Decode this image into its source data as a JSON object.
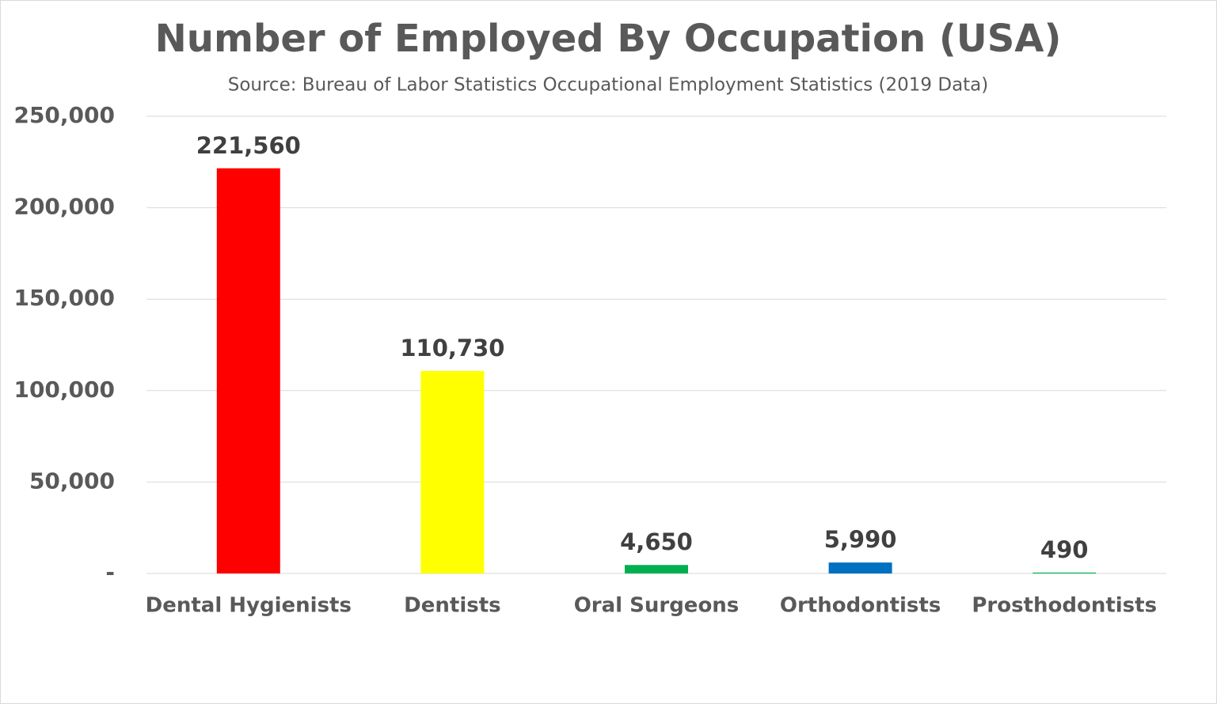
{
  "chart_data": {
    "type": "bar",
    "title": "Number of Employed By Occupation (USA)",
    "subtitle": "Source: Bureau of Labor Statistics Occupational Employment Statistics (2019 Data)",
    "categories": [
      "Dental Hygienists",
      "Dentists",
      "Oral Surgeons",
      "Orthodontists",
      "Prosthodontists"
    ],
    "values": [
      221560,
      110730,
      4650,
      5990,
      490
    ],
    "value_labels": [
      "221,560",
      "110,730",
      "4,650",
      "5,990",
      "490"
    ],
    "colors": [
      "#ff0000",
      "#ffff00",
      "#00b050",
      "#0070c0",
      "#00b050"
    ],
    "ylim": [
      0,
      250000
    ],
    "yticks": [
      {
        "value": 0,
        "label": "-"
      },
      {
        "value": 50000,
        "label": "50,000"
      },
      {
        "value": 100000,
        "label": "100,000"
      },
      {
        "value": 150000,
        "label": "150,000"
      },
      {
        "value": 200000,
        "label": "200,000"
      },
      {
        "value": 250000,
        "label": "250,000"
      }
    ],
    "grid": true
  }
}
